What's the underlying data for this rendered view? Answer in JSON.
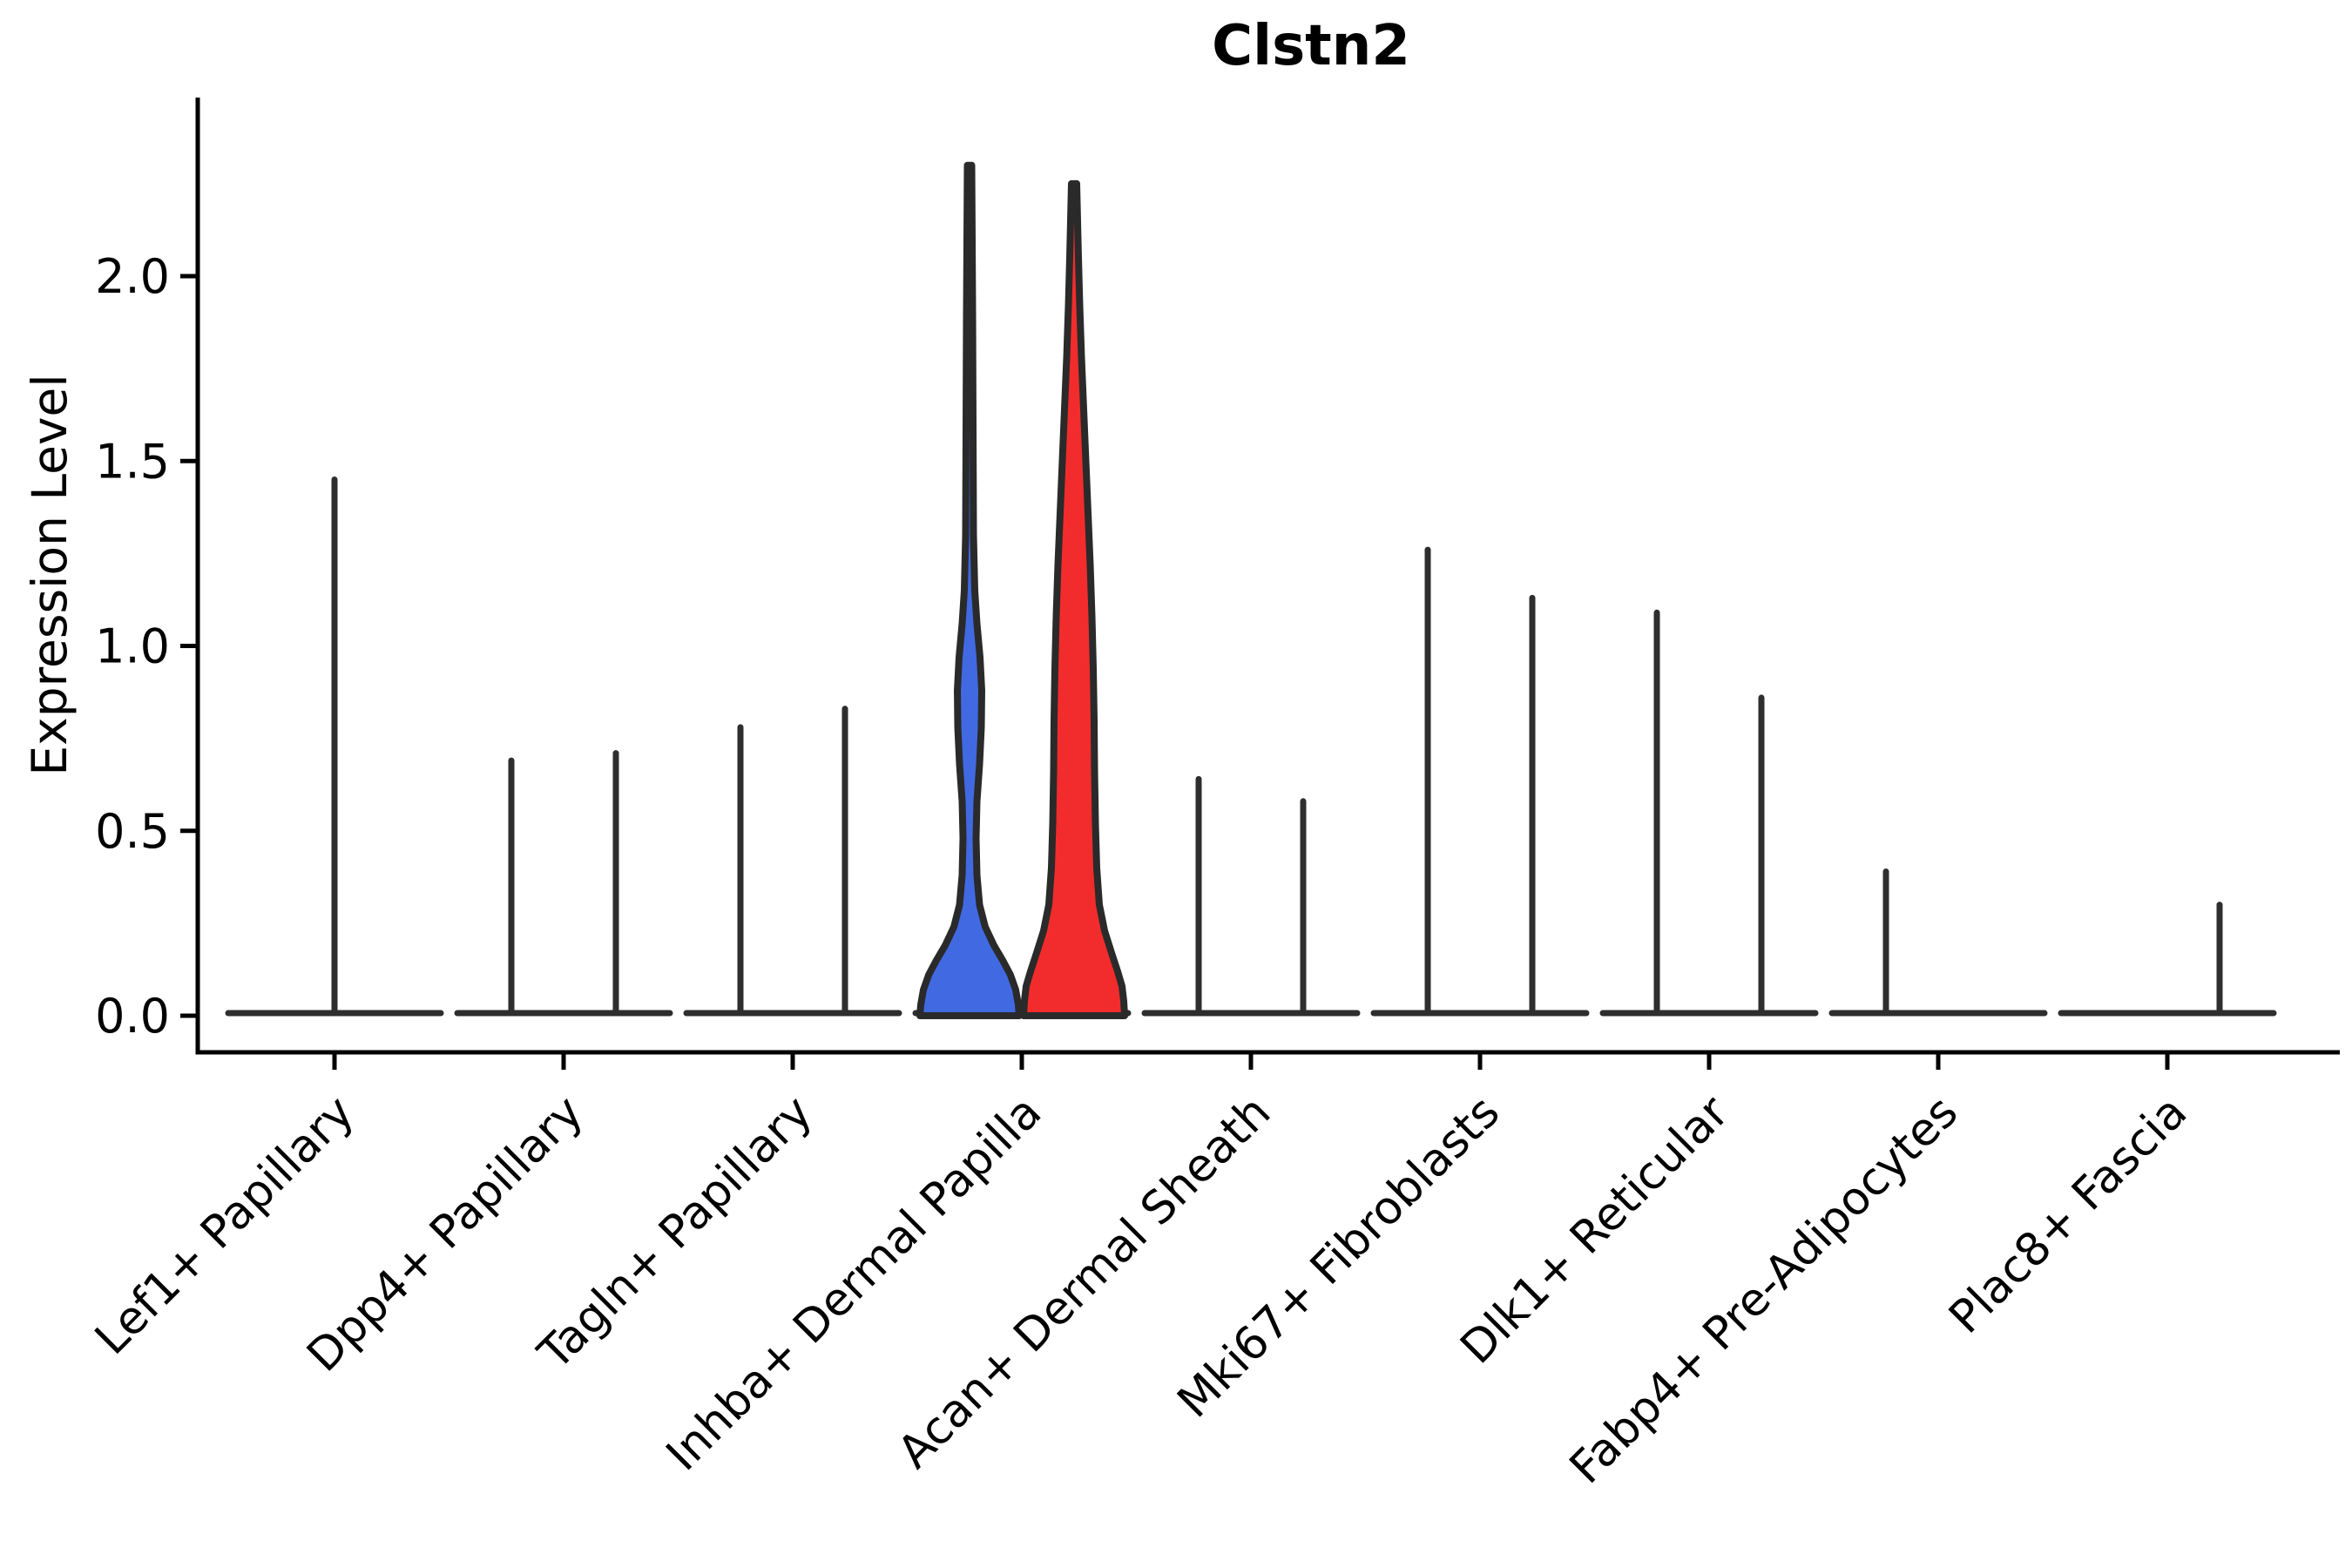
{
  "chart_data": {
    "type": "violin",
    "title": "Clstn2",
    "ylabel": "Expression Level",
    "yticks": [
      "0.0",
      "0.5",
      "1.0",
      "1.5",
      "2.0"
    ],
    "ytick_values": [
      0.0,
      0.5,
      1.0,
      1.5,
      2.0
    ],
    "ylim": [
      0,
      2.35
    ],
    "grid": "off",
    "legend": "none",
    "axis_color": "#000000",
    "violin_outline_color": "#2a2a2a",
    "spike_color": "#2e2e2e",
    "split_colors": {
      "blue": "#4169E1",
      "red": "#F22C2C"
    },
    "categories": [
      {
        "label": "Lef1+ Papillary",
        "violins": [
          {
            "position": "center",
            "shape": "spike",
            "max": 1.45
          }
        ]
      },
      {
        "label": "Dpp4+ Papillary",
        "violins": [
          {
            "position": "left",
            "shape": "spike",
            "max": 0.69
          },
          {
            "position": "right",
            "shape": "spike",
            "max": 0.71
          }
        ]
      },
      {
        "label": "Tagln+ Papillary",
        "violins": [
          {
            "position": "left",
            "shape": "spike",
            "max": 0.78
          },
          {
            "position": "right",
            "shape": "spike",
            "max": 0.83
          }
        ]
      },
      {
        "label": "Inhba+ Dermal Papilla",
        "violins": [
          {
            "position": "left",
            "shape": "violin",
            "color": "#4169E1",
            "max": 2.3,
            "profile": [
              [
                0.0,
                57
              ],
              [
                0.03,
                56
              ],
              [
                0.07,
                53
              ],
              [
                0.11,
                47
              ],
              [
                0.15,
                38
              ],
              [
                0.19,
                28
              ],
              [
                0.24,
                18
              ],
              [
                0.3,
                11.5
              ],
              [
                0.38,
                8.5
              ],
              [
                0.48,
                7.5
              ],
              [
                0.58,
                8.5
              ],
              [
                0.68,
                11.5
              ],
              [
                0.78,
                13.5
              ],
              [
                0.88,
                14
              ],
              [
                0.97,
                12
              ],
              [
                1.06,
                8.5
              ],
              [
                1.15,
                6
              ],
              [
                1.3,
                4.5
              ],
              [
                1.6,
                4
              ],
              [
                1.9,
                3.5
              ],
              [
                2.1,
                3
              ],
              [
                2.3,
                2.5
              ]
            ]
          },
          {
            "position": "right",
            "shape": "violin",
            "color": "#F22C2C",
            "max": 2.25,
            "profile": [
              [
                0.0,
                58
              ],
              [
                0.04,
                57
              ],
              [
                0.08,
                55
              ],
              [
                0.12,
                50
              ],
              [
                0.17,
                43
              ],
              [
                0.23,
                35
              ],
              [
                0.3,
                29
              ],
              [
                0.4,
                26
              ],
              [
                0.52,
                24.5
              ],
              [
                0.66,
                23.5
              ],
              [
                0.8,
                23
              ],
              [
                0.94,
                22
              ],
              [
                1.08,
                20.5
              ],
              [
                1.22,
                18.5
              ],
              [
                1.36,
                16
              ],
              [
                1.5,
                13.5
              ],
              [
                1.64,
                11
              ],
              [
                1.78,
                8.5
              ],
              [
                1.92,
                6.5
              ],
              [
                2.05,
                5
              ],
              [
                2.15,
                4
              ],
              [
                2.25,
                3
              ]
            ]
          }
        ]
      },
      {
        "label": "Acan+ Dermal Sheath",
        "violins": [
          {
            "position": "left",
            "shape": "spike",
            "max": 0.64
          },
          {
            "position": "right",
            "shape": "spike",
            "max": 0.58
          }
        ]
      },
      {
        "label": "Mki67+ Fibroblasts",
        "violins": [
          {
            "position": "left",
            "shape": "spike",
            "max": 1.26
          },
          {
            "position": "right",
            "shape": "spike",
            "max": 1.13
          }
        ]
      },
      {
        "label": "Dlk1+ Reticular",
        "violins": [
          {
            "position": "left",
            "shape": "spike",
            "max": 1.09
          },
          {
            "position": "right",
            "shape": "spike",
            "max": 0.86
          }
        ]
      },
      {
        "label": "Fabp4+ Pre-Adipocytes",
        "violins": [
          {
            "position": "left",
            "shape": "spike",
            "max": 0.39
          },
          {
            "position": "right",
            "shape": "flat",
            "max": 0
          }
        ]
      },
      {
        "label": "Plac8+ Fascia",
        "violins": [
          {
            "position": "left",
            "shape": "flat",
            "max": 0
          },
          {
            "position": "right",
            "shape": "spike",
            "max": 0.3
          }
        ]
      }
    ]
  }
}
